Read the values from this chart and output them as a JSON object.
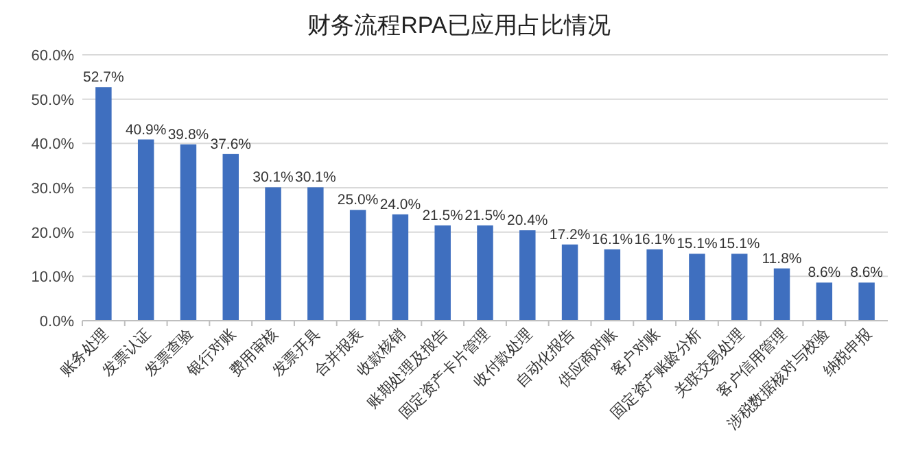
{
  "chart_data": {
    "type": "bar",
    "title": "财务流程RPA已应用占比情况",
    "categories": [
      "账务处理",
      "发票认证",
      "发票查验",
      "银行对账",
      "费用审核",
      "发票开具",
      "合并报表",
      "收款核销",
      "账期处理及报告",
      "固定资产卡片管理",
      "收付款处理",
      "自动化报告",
      "供应商对账",
      "客户对账",
      "固定资产账龄分析",
      "关联交易处理",
      "客户信用管理",
      "涉税数据核对与校验",
      "纳税申报"
    ],
    "values": [
      52.7,
      40.9,
      39.8,
      37.6,
      30.1,
      30.1,
      25.0,
      24.0,
      21.5,
      21.5,
      20.4,
      17.2,
      16.1,
      16.1,
      15.1,
      15.1,
      11.8,
      8.6,
      8.6
    ],
    "value_labels": [
      "52.7%",
      "40.9%",
      "39.8%",
      "37.6%",
      "30.1%",
      "30.1%",
      "25.0%",
      "24.0%",
      "21.5%",
      "21.5%",
      "20.4%",
      "17.2%",
      "16.1%",
      "16.1%",
      "15.1%",
      "15.1%",
      "11.8%",
      "8.6%",
      "8.6%"
    ],
    "color": "#3f6fbf",
    "ylim": [
      0,
      60
    ],
    "yticks": [
      {
        "value": 0,
        "label": "0.0%"
      },
      {
        "value": 10,
        "label": "10.0%"
      },
      {
        "value": 20,
        "label": "20.0%"
      },
      {
        "value": 30,
        "label": "30.0%"
      },
      {
        "value": 40,
        "label": "40.0%"
      },
      {
        "value": 50,
        "label": "50.0%"
      },
      {
        "value": 60,
        "label": "60.0%"
      }
    ],
    "grid": "y"
  }
}
